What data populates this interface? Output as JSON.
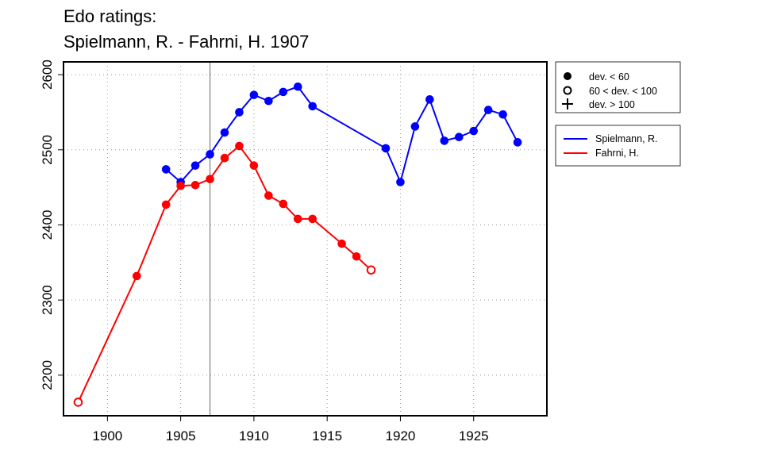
{
  "chart_data": {
    "type": "line",
    "title_lines": [
      "Edo ratings:",
      "Spielmann, R. - Fahrni, H. 1907"
    ],
    "xlabel": "",
    "ylabel": "",
    "xlim": [
      1897,
      1930
    ],
    "ylim": [
      2146,
      2617
    ],
    "x_ticks": [
      1900,
      1905,
      1910,
      1915,
      1920,
      1925
    ],
    "y_ticks": [
      2200,
      2300,
      2400,
      2500,
      2600
    ],
    "grid": true,
    "marker_line_year": 1907,
    "marker_legend": {
      "placement": "top-right",
      "items": [
        {
          "symbol": "filled-circle",
          "label": "dev. < 60"
        },
        {
          "symbol": "open-circle",
          "label": "60 < dev. < 100"
        },
        {
          "symbol": "plus",
          "label": "dev. > 100"
        }
      ]
    },
    "series_legend_placement": "top-right",
    "series": [
      {
        "name": "Spielmann, R.",
        "color": "#0000ff",
        "points": [
          {
            "x": 1904,
            "y": 2474,
            "dev": "filled"
          },
          {
            "x": 1905,
            "y": 2457,
            "dev": "filled"
          },
          {
            "x": 1906,
            "y": 2479,
            "dev": "filled"
          },
          {
            "x": 1907,
            "y": 2494,
            "dev": "filled"
          },
          {
            "x": 1908,
            "y": 2523,
            "dev": "filled"
          },
          {
            "x": 1909,
            "y": 2550,
            "dev": "filled"
          },
          {
            "x": 1910,
            "y": 2573,
            "dev": "filled"
          },
          {
            "x": 1911,
            "y": 2565,
            "dev": "filled"
          },
          {
            "x": 1912,
            "y": 2577,
            "dev": "filled"
          },
          {
            "x": 1913,
            "y": 2584,
            "dev": "filled"
          },
          {
            "x": 1914,
            "y": 2558,
            "dev": "filled"
          },
          {
            "x": 1919,
            "y": 2502,
            "dev": "filled"
          },
          {
            "x": 1920,
            "y": 2457,
            "dev": "filled"
          },
          {
            "x": 1921,
            "y": 2531,
            "dev": "filled"
          },
          {
            "x": 1922,
            "y": 2567,
            "dev": "filled"
          },
          {
            "x": 1923,
            "y": 2512,
            "dev": "filled"
          },
          {
            "x": 1924,
            "y": 2517,
            "dev": "filled"
          },
          {
            "x": 1925,
            "y": 2525,
            "dev": "filled"
          },
          {
            "x": 1926,
            "y": 2553,
            "dev": "filled"
          },
          {
            "x": 1927,
            "y": 2547,
            "dev": "filled"
          },
          {
            "x": 1928,
            "y": 2510,
            "dev": "filled"
          }
        ]
      },
      {
        "name": "Fahrni, H.",
        "color": "#ff0000",
        "points": [
          {
            "x": 1898,
            "y": 2164,
            "dev": "open"
          },
          {
            "x": 1902,
            "y": 2332,
            "dev": "filled"
          },
          {
            "x": 1904,
            "y": 2427,
            "dev": "filled"
          },
          {
            "x": 1905,
            "y": 2452,
            "dev": "filled"
          },
          {
            "x": 1906,
            "y": 2453,
            "dev": "filled"
          },
          {
            "x": 1907,
            "y": 2461,
            "dev": "filled"
          },
          {
            "x": 1908,
            "y": 2489,
            "dev": "filled"
          },
          {
            "x": 1909,
            "y": 2505,
            "dev": "filled"
          },
          {
            "x": 1910,
            "y": 2479,
            "dev": "filled"
          },
          {
            "x": 1911,
            "y": 2439,
            "dev": "filled"
          },
          {
            "x": 1912,
            "y": 2428,
            "dev": "filled"
          },
          {
            "x": 1913,
            "y": 2408,
            "dev": "filled"
          },
          {
            "x": 1914,
            "y": 2408,
            "dev": "filled"
          },
          {
            "x": 1916,
            "y": 2375,
            "dev": "filled"
          },
          {
            "x": 1917,
            "y": 2358,
            "dev": "filled"
          },
          {
            "x": 1918,
            "y": 2340,
            "dev": "open"
          }
        ]
      }
    ]
  }
}
